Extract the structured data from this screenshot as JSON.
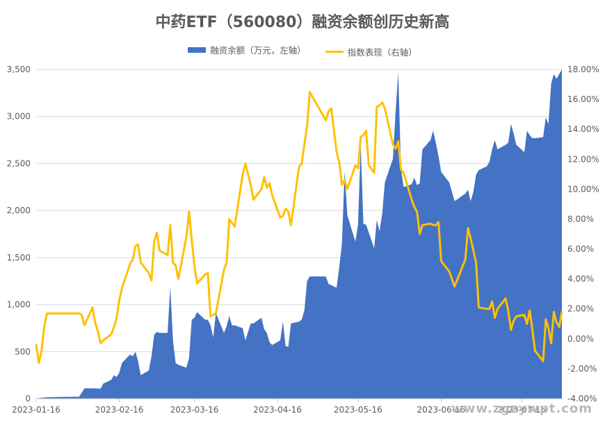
{
  "chart_data": {
    "type": "area+line",
    "title": "中药ETF（560080）融资余额创历史新高",
    "legend_position": "top",
    "left_axis": {
      "ylim": [
        0,
        3500
      ],
      "ticks": [
        "0",
        "500",
        "1,000",
        "1,500",
        "2,000",
        "2,500",
        "3,000",
        "3,500"
      ]
    },
    "right_axis": {
      "ylim": [
        -4,
        18
      ],
      "ticks": [
        "-4.00%",
        "-2.00%",
        "0.00%",
        "2.00%",
        "4.00%",
        "6.00%",
        "8.00%",
        "10.00%",
        "12.00%",
        "14.00%",
        "16.00%",
        "18.00%"
      ]
    },
    "x_ticks": [
      "2023-01-16",
      "2023-02-16",
      "2023-03-16",
      "2023-04-16",
      "2023-05-16",
      "2023-06-16",
      "2023-07-16"
    ],
    "x_start": "2023-01-16",
    "x_end": "2023-07-31",
    "grid": true,
    "series": [
      {
        "name": "融资余额（万元，左轴）",
        "kind": "area",
        "axis": "left",
        "color": "#4472C4",
        "points": [
          [
            "2023-01-16",
            0
          ],
          [
            "2023-01-18",
            10
          ],
          [
            "2023-01-20",
            15
          ],
          [
            "2023-01-25",
            18
          ],
          [
            "2023-01-30",
            20
          ],
          [
            "2023-02-01",
            20
          ],
          [
            "2023-02-03",
            110
          ],
          [
            "2023-02-07",
            110
          ],
          [
            "2023-02-09",
            105
          ],
          [
            "2023-02-10",
            160
          ],
          [
            "2023-02-13",
            200
          ],
          [
            "2023-02-14",
            250
          ],
          [
            "2023-02-15",
            230
          ],
          [
            "2023-02-16",
            280
          ],
          [
            "2023-02-17",
            380
          ],
          [
            "2023-02-20",
            470
          ],
          [
            "2023-02-21",
            450
          ],
          [
            "2023-02-22",
            500
          ],
          [
            "2023-02-23",
            400
          ],
          [
            "2023-02-24",
            250
          ],
          [
            "2023-02-27",
            300
          ],
          [
            "2023-02-28",
            450
          ],
          [
            "2023-03-01",
            680
          ],
          [
            "2023-03-02",
            710
          ],
          [
            "2023-03-03",
            700
          ],
          [
            "2023-03-06",
            700
          ],
          [
            "2023-03-07",
            1190
          ],
          [
            "2023-03-08",
            620
          ],
          [
            "2023-03-09",
            380
          ],
          [
            "2023-03-10",
            360
          ],
          [
            "2023-03-13",
            330
          ],
          [
            "2023-03-14",
            430
          ],
          [
            "2023-03-15",
            840
          ],
          [
            "2023-03-16",
            860
          ],
          [
            "2023-03-17",
            920
          ],
          [
            "2023-03-20",
            840
          ],
          [
            "2023-03-21",
            840
          ],
          [
            "2023-03-22",
            780
          ],
          [
            "2023-03-23",
            650
          ],
          [
            "2023-03-24",
            910
          ],
          [
            "2023-03-27",
            700
          ],
          [
            "2023-03-28",
            770
          ],
          [
            "2023-03-29",
            880
          ],
          [
            "2023-03-30",
            780
          ],
          [
            "2023-03-31",
            780
          ],
          [
            "2023-04-03",
            750
          ],
          [
            "2023-04-04",
            620
          ],
          [
            "2023-04-06",
            800
          ],
          [
            "2023-04-07",
            800
          ],
          [
            "2023-04-10",
            860
          ],
          [
            "2023-04-11",
            740
          ],
          [
            "2023-04-12",
            700
          ],
          [
            "2023-04-13",
            600
          ],
          [
            "2023-04-14",
            570
          ],
          [
            "2023-04-17",
            620
          ],
          [
            "2023-04-18",
            820
          ],
          [
            "2023-04-19",
            560
          ],
          [
            "2023-04-20",
            550
          ],
          [
            "2023-04-21",
            800
          ],
          [
            "2023-04-24",
            820
          ],
          [
            "2023-04-25",
            840
          ],
          [
            "2023-04-26",
            940
          ],
          [
            "2023-04-27",
            1250
          ],
          [
            "2023-04-28",
            1300
          ],
          [
            "2023-05-04",
            1300
          ],
          [
            "2023-05-05",
            1220
          ],
          [
            "2023-05-08",
            1180
          ],
          [
            "2023-05-09",
            1400
          ],
          [
            "2023-05-10",
            1650
          ],
          [
            "2023-05-11",
            2420
          ],
          [
            "2023-05-12",
            1950
          ],
          [
            "2023-05-15",
            1670
          ],
          [
            "2023-05-16",
            1850
          ],
          [
            "2023-05-17",
            2700
          ],
          [
            "2023-05-18",
            1860
          ],
          [
            "2023-05-19",
            1850
          ],
          [
            "2023-05-22",
            1600
          ],
          [
            "2023-05-23",
            1900
          ],
          [
            "2023-05-24",
            1780
          ],
          [
            "2023-05-25",
            1960
          ],
          [
            "2023-05-26",
            2300
          ],
          [
            "2023-05-29",
            2550
          ],
          [
            "2023-05-30",
            3050
          ],
          [
            "2023-05-31",
            3470
          ],
          [
            "2023-06-01",
            2450
          ],
          [
            "2023-06-02",
            2250
          ],
          [
            "2023-06-05",
            2280
          ],
          [
            "2023-06-06",
            2350
          ],
          [
            "2023-06-07",
            2270
          ],
          [
            "2023-06-08",
            2290
          ],
          [
            "2023-06-09",
            2650
          ],
          [
            "2023-06-12",
            2750
          ],
          [
            "2023-06-13",
            2850
          ],
          [
            "2023-06-14",
            2720
          ],
          [
            "2023-06-15",
            2580
          ],
          [
            "2023-06-16",
            2410
          ],
          [
            "2023-06-19",
            2300
          ],
          [
            "2023-06-20",
            2200
          ],
          [
            "2023-06-21",
            2100
          ],
          [
            "2023-06-25",
            2180
          ],
          [
            "2023-06-26",
            2220
          ],
          [
            "2023-06-27",
            2100
          ],
          [
            "2023-06-28",
            2200
          ],
          [
            "2023-06-29",
            2380
          ],
          [
            "2023-06-30",
            2430
          ],
          [
            "2023-07-03",
            2470
          ],
          [
            "2023-07-04",
            2520
          ],
          [
            "2023-07-05",
            2650
          ],
          [
            "2023-07-06",
            2750
          ],
          [
            "2023-07-07",
            2650
          ],
          [
            "2023-07-10",
            2700
          ],
          [
            "2023-07-11",
            2720
          ],
          [
            "2023-07-12",
            2920
          ],
          [
            "2023-07-13",
            2820
          ],
          [
            "2023-07-14",
            2700
          ],
          [
            "2023-07-17",
            2620
          ],
          [
            "2023-07-18",
            2850
          ],
          [
            "2023-07-19",
            2800
          ],
          [
            "2023-07-20",
            2770
          ],
          [
            "2023-07-21",
            2770
          ],
          [
            "2023-07-24",
            2780
          ],
          [
            "2023-07-25",
            2990
          ],
          [
            "2023-07-26",
            2920
          ],
          [
            "2023-07-27",
            3350
          ],
          [
            "2023-07-28",
            3450
          ],
          [
            "2023-07-29",
            3400
          ],
          [
            "2023-07-31",
            3500
          ]
        ]
      },
      {
        "name": "指数表现（右轴）",
        "kind": "line",
        "axis": "right",
        "color": "#FFC000",
        "points": [
          [
            "2023-01-16",
            -0.4
          ],
          [
            "2023-01-17",
            -1.6
          ],
          [
            "2023-01-18",
            -0.8
          ],
          [
            "2023-01-19",
            0.8
          ],
          [
            "2023-01-20",
            1.7
          ],
          [
            "2023-01-30",
            1.7
          ],
          [
            "2023-02-01",
            1.7
          ],
          [
            "2023-02-02",
            1.6
          ],
          [
            "2023-02-03",
            0.9
          ],
          [
            "2023-02-06",
            2.1
          ],
          [
            "2023-02-07",
            1.1
          ],
          [
            "2023-02-08",
            0.5
          ],
          [
            "2023-02-09",
            -0.3
          ],
          [
            "2023-02-10",
            -0.1
          ],
          [
            "2023-02-13",
            0.3
          ],
          [
            "2023-02-14",
            0.8
          ],
          [
            "2023-02-15",
            1.4
          ],
          [
            "2023-02-16",
            2.6
          ],
          [
            "2023-02-17",
            3.4
          ],
          [
            "2023-02-20",
            5.0
          ],
          [
            "2023-02-21",
            5.3
          ],
          [
            "2023-02-22",
            6.2
          ],
          [
            "2023-02-23",
            6.3
          ],
          [
            "2023-02-24",
            5.1
          ],
          [
            "2023-02-27",
            4.4
          ],
          [
            "2023-02-28",
            3.9
          ],
          [
            "2023-03-01",
            6.5
          ],
          [
            "2023-03-02",
            7.1
          ],
          [
            "2023-03-03",
            5.9
          ],
          [
            "2023-03-06",
            5.6
          ],
          [
            "2023-03-07",
            7.6
          ],
          [
            "2023-03-08",
            5.1
          ],
          [
            "2023-03-09",
            4.9
          ],
          [
            "2023-03-10",
            4.0
          ],
          [
            "2023-03-13",
            6.8
          ],
          [
            "2023-03-14",
            8.5
          ],
          [
            "2023-03-15",
            6.6
          ],
          [
            "2023-03-16",
            4.9
          ],
          [
            "2023-03-17",
            3.7
          ],
          [
            "2023-03-20",
            4.3
          ],
          [
            "2023-03-21",
            4.4
          ],
          [
            "2023-03-22",
            1.5
          ],
          [
            "2023-03-24",
            1.7
          ],
          [
            "2023-03-27",
            4.6
          ],
          [
            "2023-03-28",
            5.1
          ],
          [
            "2023-03-29",
            8.0
          ],
          [
            "2023-03-31",
            7.5
          ],
          [
            "2023-04-03",
            11.0
          ],
          [
            "2023-04-04",
            11.7
          ],
          [
            "2023-04-06",
            10.3
          ],
          [
            "2023-04-07",
            9.3
          ],
          [
            "2023-04-10",
            10.0
          ],
          [
            "2023-04-11",
            10.8
          ],
          [
            "2023-04-12",
            10.1
          ],
          [
            "2023-04-13",
            10.4
          ],
          [
            "2023-04-14",
            9.6
          ],
          [
            "2023-04-17",
            8.1
          ],
          [
            "2023-04-18",
            8.2
          ],
          [
            "2023-04-19",
            8.7
          ],
          [
            "2023-04-20",
            8.5
          ],
          [
            "2023-04-21",
            7.6
          ],
          [
            "2023-04-24",
            11.5
          ],
          [
            "2023-04-25",
            11.7
          ],
          [
            "2023-04-26",
            13.0
          ],
          [
            "2023-04-27",
            14.2
          ],
          [
            "2023-04-28",
            16.5
          ],
          [
            "2023-05-04",
            14.6
          ],
          [
            "2023-05-05",
            15.2
          ],
          [
            "2023-05-06",
            15.4
          ],
          [
            "2023-05-08",
            12.5
          ],
          [
            "2023-05-09",
            11.8
          ],
          [
            "2023-05-10",
            10.3
          ],
          [
            "2023-05-11",
            10.6
          ],
          [
            "2023-05-12",
            10.0
          ],
          [
            "2023-05-15",
            11.6
          ],
          [
            "2023-05-16",
            11.4
          ],
          [
            "2023-05-17",
            13.5
          ],
          [
            "2023-05-18",
            13.6
          ],
          [
            "2023-05-19",
            13.9
          ],
          [
            "2023-05-20",
            11.6
          ],
          [
            "2023-05-22",
            11.1
          ],
          [
            "2023-05-23",
            15.5
          ],
          [
            "2023-05-24",
            15.6
          ],
          [
            "2023-05-25",
            15.8
          ],
          [
            "2023-05-26",
            15.4
          ],
          [
            "2023-05-29",
            13.0
          ],
          [
            "2023-05-30",
            12.7
          ],
          [
            "2023-05-31",
            13.2
          ],
          [
            "2023-06-01",
            11.3
          ],
          [
            "2023-06-02",
            11.1
          ],
          [
            "2023-06-05",
            9.3
          ],
          [
            "2023-06-06",
            8.8
          ],
          [
            "2023-06-07",
            8.5
          ],
          [
            "2023-06-08",
            7.0
          ],
          [
            "2023-06-09",
            7.6
          ],
          [
            "2023-06-12",
            7.7
          ],
          [
            "2023-06-13",
            7.6
          ],
          [
            "2023-06-14",
            7.6
          ],
          [
            "2023-06-15",
            7.8
          ],
          [
            "2023-06-16",
            5.2
          ],
          [
            "2023-06-19",
            4.5
          ],
          [
            "2023-06-20",
            4.0
          ],
          [
            "2023-06-21",
            3.5
          ],
          [
            "2023-06-25",
            5.3
          ],
          [
            "2023-06-26",
            7.4
          ],
          [
            "2023-06-27",
            6.7
          ],
          [
            "2023-06-28",
            5.9
          ],
          [
            "2023-06-29",
            5.1
          ],
          [
            "2023-06-30",
            2.1
          ],
          [
            "2023-07-03",
            2.0
          ],
          [
            "2023-07-04",
            2.0
          ],
          [
            "2023-07-05",
            2.5
          ],
          [
            "2023-07-06",
            1.4
          ],
          [
            "2023-07-07",
            2.0
          ],
          [
            "2023-07-10",
            2.7
          ],
          [
            "2023-07-11",
            1.9
          ],
          [
            "2023-07-12",
            0.6
          ],
          [
            "2023-07-13",
            1.2
          ],
          [
            "2023-07-14",
            1.5
          ],
          [
            "2023-07-17",
            1.6
          ],
          [
            "2023-07-18",
            1.0
          ],
          [
            "2023-07-19",
            1.9
          ],
          [
            "2023-07-20",
            0.6
          ],
          [
            "2023-07-21",
            -0.8
          ],
          [
            "2023-07-24",
            -1.5
          ],
          [
            "2023-07-25",
            1.3
          ],
          [
            "2023-07-26",
            0.7
          ],
          [
            "2023-07-27",
            -0.3
          ],
          [
            "2023-07-28",
            1.8
          ],
          [
            "2023-07-29",
            1.1
          ],
          [
            "2023-07-30",
            0.8
          ],
          [
            "2023-07-31",
            1.8
          ]
        ]
      }
    ]
  },
  "watermark": "www.zgzywpt.com"
}
